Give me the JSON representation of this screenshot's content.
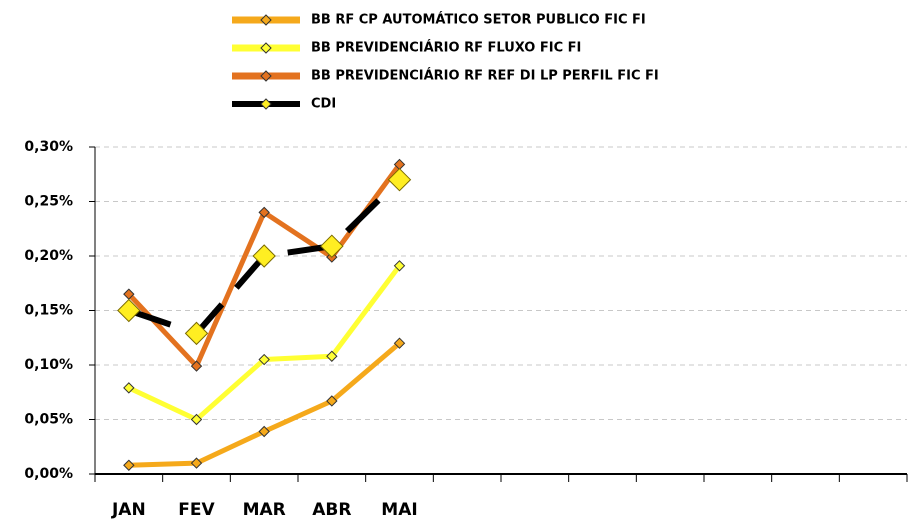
{
  "chart_data": {
    "type": "line",
    "categories": [
      "JAN",
      "FEV",
      "MAR",
      "ABR",
      "MAI",
      null,
      null,
      null,
      null,
      null,
      null,
      null
    ],
    "series": [
      {
        "name": "BB RF CP AUTOMÁTICO SETOR PUBLICO FIC FI",
        "color": "#f5a91b",
        "values": [
          0.008,
          0.01,
          0.039,
          0.067,
          0.12,
          null,
          null,
          null,
          null,
          null,
          null,
          null
        ]
      },
      {
        "name": "BB PREVIDENCIÁRIO RF FLUXO FIC FI",
        "color": "#ffff33",
        "values": [
          0.079,
          0.05,
          0.105,
          0.108,
          0.191,
          null,
          null,
          null,
          null,
          null,
          null,
          null
        ]
      },
      {
        "name": "BB PREVIDENCIÁRIO RF REF DI LP PERFIL FIC FI",
        "color": "#e3721f",
        "values": [
          0.165,
          0.099,
          0.24,
          0.199,
          0.284,
          null,
          null,
          null,
          null,
          null,
          null,
          null
        ]
      },
      {
        "name": "CDI",
        "color": "#000000",
        "values": [
          0.15,
          0.129,
          0.2,
          0.209,
          0.27,
          null,
          null,
          null,
          null,
          null,
          null,
          null
        ]
      }
    ],
    "ylim": [
      0,
      0.3
    ],
    "yticks": [
      {
        "value": 0,
        "label": "0,00%"
      },
      {
        "value": 0.05,
        "label": "0,05%"
      },
      {
        "value": 0.1,
        "label": "0,10%"
      },
      {
        "value": 0.15,
        "label": "0,15%"
      },
      {
        "value": 0.2,
        "label": "0,20%"
      },
      {
        "value": 0.25,
        "label": "0,25%"
      },
      {
        "value": 0.3,
        "label": "0,30%"
      }
    ],
    "grid": true,
    "legend": "top"
  }
}
